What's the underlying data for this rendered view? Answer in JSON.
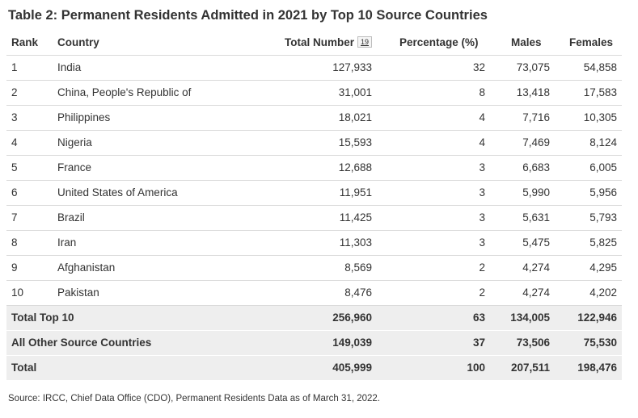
{
  "caption": "Table 2: Permanent Residents Admitted in 2021 by Top 10 Source Countries",
  "headers": {
    "rank": "Rank",
    "country": "Country",
    "total": "Total Number",
    "footnote": "19",
    "percentage": "Percentage (%)",
    "males": "Males",
    "females": "Females"
  },
  "rows": [
    {
      "rank": "1",
      "country": "India",
      "total": "127,933",
      "percentage": "32",
      "males": "73,075",
      "females": "54,858"
    },
    {
      "rank": "2",
      "country": "China, People's Republic of",
      "total": "31,001",
      "percentage": "8",
      "males": "13,418",
      "females": "17,583"
    },
    {
      "rank": "3",
      "country": "Philippines",
      "total": "18,021",
      "percentage": "4",
      "males": "7,716",
      "females": "10,305"
    },
    {
      "rank": "4",
      "country": "Nigeria",
      "total": "15,593",
      "percentage": "4",
      "males": "7,469",
      "females": "8,124"
    },
    {
      "rank": "5",
      "country": "France",
      "total": "12,688",
      "percentage": "3",
      "males": "6,683",
      "females": "6,005"
    },
    {
      "rank": "6",
      "country": "United States of America",
      "total": "11,951",
      "percentage": "3",
      "males": "5,990",
      "females": "5,956"
    },
    {
      "rank": "7",
      "country": "Brazil",
      "total": "11,425",
      "percentage": "3",
      "males": "5,631",
      "females": "5,793"
    },
    {
      "rank": "8",
      "country": "Iran",
      "total": "11,303",
      "percentage": "3",
      "males": "5,475",
      "females": "5,825"
    },
    {
      "rank": "9",
      "country": "Afghanistan",
      "total": "8,569",
      "percentage": "2",
      "males": "4,274",
      "females": "4,295"
    },
    {
      "rank": "10",
      "country": "Pakistan",
      "total": "8,476",
      "percentage": "2",
      "males": "4,274",
      "females": "4,202"
    }
  ],
  "summary": [
    {
      "label": "Total Top 10",
      "total": "256,960",
      "percentage": "63",
      "males": "134,005",
      "females": "122,946"
    },
    {
      "label": "All Other Source Countries",
      "total": "149,039",
      "percentage": "37",
      "males": "73,506",
      "females": "75,530"
    },
    {
      "label": "Total",
      "total": "405,999",
      "percentage": "100",
      "males": "207,511",
      "females": "198,476"
    }
  ],
  "source": "Source: IRCC, Chief Data Office (CDO), Permanent Residents Data as of March 31, 2022."
}
